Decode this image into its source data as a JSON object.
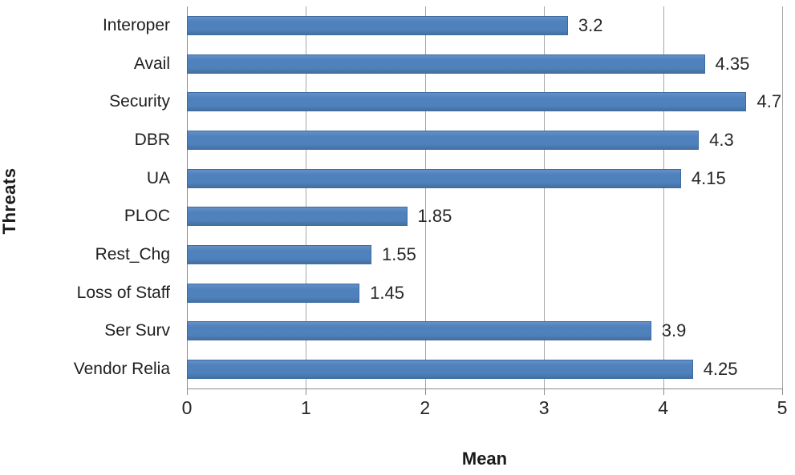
{
  "chart_data": {
    "type": "bar",
    "orientation": "horizontal",
    "title": "",
    "xlabel": "Mean",
    "ylabel": "Threats",
    "categories": [
      "Interoper",
      "Avail",
      "Security",
      "DBR",
      "UA",
      "PLOC",
      "Rest_Chg",
      "Loss of Staff",
      "Ser Surv",
      "Vendor Relia"
    ],
    "values": [
      3.2,
      4.35,
      4.7,
      4.3,
      4.15,
      1.85,
      1.55,
      1.45,
      3.9,
      4.25
    ],
    "value_labels": [
      "3.2",
      "4.35",
      "4.7",
      "4.3",
      "4.15",
      "1.85",
      "1.55",
      "1.45",
      "3.9",
      "4.25"
    ],
    "xlim": [
      0,
      5
    ],
    "xticks": [
      "0",
      "1",
      "2",
      "3",
      "4",
      "5"
    ],
    "grid": "vertical-only",
    "legend": "none",
    "colors": {
      "bar_fill": "#4f81bd",
      "bar_border": "#3c6ba3",
      "gridline": "#a6a6a6",
      "axis_line": "#8c8c8c",
      "text": "#262626",
      "background": "#ffffff"
    }
  }
}
